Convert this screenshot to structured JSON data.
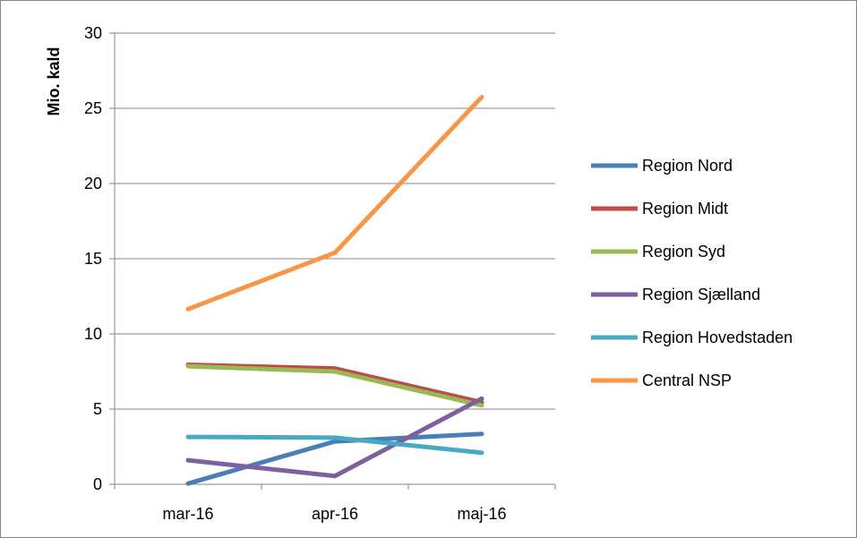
{
  "chart_data": {
    "type": "line",
    "title": "",
    "xlabel": "",
    "ylabel": "Mio. kald",
    "categories": [
      "mar-16",
      "apr-16",
      "maj-16"
    ],
    "ylim": [
      0,
      30
    ],
    "yticks": [
      "0",
      "5",
      "10",
      "15",
      "20",
      "25",
      "30"
    ],
    "grid": "horizontal",
    "legend_position": "right",
    "series": [
      {
        "name": "Region Nord",
        "color": "#4a7ebb",
        "values": [
          0.05,
          2.85,
          3.35
        ]
      },
      {
        "name": "Region Midt",
        "color": "#be4b48",
        "values": [
          7.95,
          7.7,
          5.45
        ]
      },
      {
        "name": "Region Syd",
        "color": "#98b954",
        "values": [
          7.85,
          7.5,
          5.25
        ]
      },
      {
        "name": "Region Sjælland",
        "color": "#7d60a0",
        "values": [
          1.6,
          0.55,
          5.7
        ]
      },
      {
        "name": "Region Hovedstaden",
        "color": "#46aac5",
        "values": [
          3.15,
          3.1,
          2.1
        ]
      },
      {
        "name": "Central NSP",
        "color": "#f79646",
        "values": [
          11.65,
          15.4,
          25.75
        ]
      }
    ]
  }
}
